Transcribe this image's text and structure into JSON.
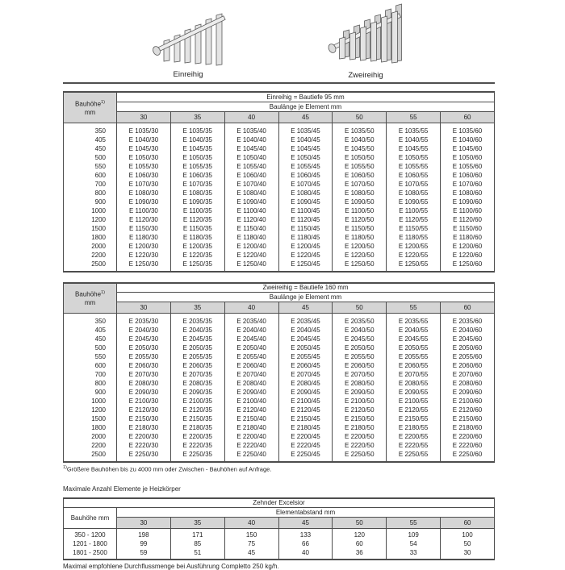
{
  "colors": {
    "header_fill": "#d5d5d5",
    "border": "#4d4d4d",
    "text": "#1f1f1f"
  },
  "diagrams": {
    "left_label": "Einreihig",
    "right_label": "Zweireihig"
  },
  "tables": [
    {
      "left_header": "Bauhöhe",
      "left_header_sup": "1)",
      "left_header_unit": "mm",
      "band_title": "Einreihig = Bautiefe 95 mm",
      "band_subtitle": "Baulänge je Element mm",
      "columns": [
        "30",
        "35",
        "40",
        "45",
        "50",
        "55",
        "60"
      ],
      "rows": [
        [
          "350",
          "E 1035/30",
          "E 1035/35",
          "E 1035/40",
          "E 1035/45",
          "E 1035/50",
          "E 1035/55",
          "E 1035/60"
        ],
        [
          "405",
          "E 1040/30",
          "E 1040/35",
          "E 1040/40",
          "E 1040/45",
          "E 1040/50",
          "E 1040/55",
          "E 1040/60"
        ],
        [
          "450",
          "E 1045/30",
          "E 1045/35",
          "E 1045/40",
          "E 1045/45",
          "E 1045/50",
          "E 1045/55",
          "E 1045/60"
        ],
        [
          "500",
          "E 1050/30",
          "E 1050/35",
          "E 1050/40",
          "E 1050/45",
          "E 1050/50",
          "E 1050/55",
          "E 1050/60"
        ],
        [
          "550",
          "E 1055/30",
          "E 1055/35",
          "E 1055/40",
          "E 1055/45",
          "E 1055/50",
          "E 1055/55",
          "E 1055/60"
        ],
        [
          "600",
          "E 1060/30",
          "E 1060/35",
          "E 1060/40",
          "E 1060/45",
          "E 1060/50",
          "E 1060/55",
          "E 1060/60"
        ],
        [
          "700",
          "E 1070/30",
          "E 1070/35",
          "E 1070/40",
          "E 1070/45",
          "E 1070/50",
          "E 1070/55",
          "E 1070/60"
        ],
        [
          "800",
          "E 1080/30",
          "E 1080/35",
          "E 1080/40",
          "E 1080/45",
          "E 1080/50",
          "E 1080/55",
          "E 1080/60"
        ],
        [
          "900",
          "E 1090/30",
          "E 1090/35",
          "E 1090/40",
          "E 1090/45",
          "E 1090/50",
          "E 1090/55",
          "E 1090/60"
        ],
        [
          "1000",
          "E 1100/30",
          "E 1100/35",
          "E 1100/40",
          "E 1100/45",
          "E 1100/50",
          "E 1100/55",
          "E 1100/60"
        ],
        [
          "1200",
          "E 1120/30",
          "E 1120/35",
          "E 1120/40",
          "E 1120/45",
          "E 1120/50",
          "E 1120/55",
          "E 1120/60"
        ],
        [
          "1500",
          "E 1150/30",
          "E 1150/35",
          "E 1150/40",
          "E 1150/45",
          "E 1150/50",
          "E 1150/55",
          "E 1150/60"
        ],
        [
          "1800",
          "E 1180/30",
          "E 1180/35",
          "E 1180/40",
          "E 1180/45",
          "E 1180/50",
          "E 1180/55",
          "E 1180/60"
        ],
        [
          "2000",
          "E 1200/30",
          "E 1200/35",
          "E 1200/40",
          "E 1200/45",
          "E 1200/50",
          "E 1200/55",
          "E 1200/60"
        ],
        [
          "2200",
          "E 1220/30",
          "E 1220/35",
          "E 1220/40",
          "E 1220/45",
          "E 1220/50",
          "E 1220/55",
          "E 1220/60"
        ],
        [
          "2500",
          "E 1250/30",
          "E 1250/35",
          "E 1250/40",
          "E 1250/45",
          "E 1250/50",
          "E 1250/55",
          "E 1250/60"
        ]
      ]
    },
    {
      "left_header": "Bauhöhe",
      "left_header_sup": "1)",
      "left_header_unit": "mm",
      "band_title": "Zweireihig = Bautiefe 160 mm",
      "band_subtitle": "Baulänge je Element mm",
      "columns": [
        "30",
        "35",
        "40",
        "45",
        "50",
        "55",
        "60"
      ],
      "rows": [
        [
          "350",
          "E 2035/30",
          "E 2035/35",
          "E 2035/40",
          "E 2035/45",
          "E 2035/50",
          "E 2035/55",
          "E 2035/60"
        ],
        [
          "405",
          "E 2040/30",
          "E 2040/35",
          "E 2040/40",
          "E 2040/45",
          "E 2040/50",
          "E 2040/55",
          "E 2040/60"
        ],
        [
          "450",
          "E 2045/30",
          "E 2045/35",
          "E 2045/40",
          "E 2045/45",
          "E 2045/50",
          "E 2045/55",
          "E 2045/60"
        ],
        [
          "500",
          "E 2050/30",
          "E 2050/35",
          "E 2050/40",
          "E 2050/45",
          "E 2050/50",
          "E 2050/55",
          "E 2050/60"
        ],
        [
          "550",
          "E 2055/30",
          "E 2055/35",
          "E 2055/40",
          "E 2055/45",
          "E 2055/50",
          "E 2055/55",
          "E 2055/60"
        ],
        [
          "600",
          "E 2060/30",
          "E 2060/35",
          "E 2060/40",
          "E 2060/45",
          "E 2060/50",
          "E 2060/55",
          "E 2060/60"
        ],
        [
          "700",
          "E 2070/30",
          "E 2070/35",
          "E 2070/40",
          "E 2070/45",
          "E 2070/50",
          "E 2070/55",
          "E 2070/60"
        ],
        [
          "800",
          "E 2080/30",
          "E 2080/35",
          "E 2080/40",
          "E 2080/45",
          "E 2080/50",
          "E 2080/55",
          "E 2080/60"
        ],
        [
          "900",
          "E 2090/30",
          "E 2090/35",
          "E 2090/40",
          "E 2090/45",
          "E 2090/50",
          "E 2090/55",
          "E 2090/60"
        ],
        [
          "1000",
          "E 2100/30",
          "E 2100/35",
          "E 2100/40",
          "E 2100/45",
          "E 2100/50",
          "E 2100/55",
          "E 2100/60"
        ],
        [
          "1200",
          "E 2120/30",
          "E 2120/35",
          "E 2120/40",
          "E 2120/45",
          "E 2120/50",
          "E 2120/55",
          "E 2120/60"
        ],
        [
          "1500",
          "E 2150/30",
          "E 2150/35",
          "E 2150/40",
          "E 2150/45",
          "E 2150/50",
          "E 2150/55",
          "E 2150/60"
        ],
        [
          "1800",
          "E 2180/30",
          "E 2180/35",
          "E 2180/40",
          "E 2180/45",
          "E 2180/50",
          "E 2180/55",
          "E 2180/60"
        ],
        [
          "2000",
          "E 2200/30",
          "E 2200/35",
          "E 2200/40",
          "E 2200/45",
          "E 2200/50",
          "E 2200/55",
          "E 2200/60"
        ],
        [
          "2200",
          "E 2220/30",
          "E 2220/35",
          "E 2220/40",
          "E 2220/45",
          "E 2220/50",
          "E 2220/55",
          "E 2220/60"
        ],
        [
          "2500",
          "E 2250/30",
          "E 2250/35",
          "E 2250/40",
          "E 2250/45",
          "E 2250/50",
          "E 2250/55",
          "E 2250/60"
        ]
      ]
    }
  ],
  "footnote": {
    "marker": "1)",
    "text": "Größere Bauhöhen bis zu 4000 mm oder Zwischen - Bauhöhen auf Anfrage."
  },
  "max_elements": {
    "heading": "Maximale Anzahl Elemente je Heizkörper",
    "brand": "Zehnder Excelsior",
    "left_header": "Bauhöhe mm",
    "band_title": "Elementabstand mm",
    "columns": [
      "30",
      "35",
      "40",
      "45",
      "50",
      "55",
      "60"
    ],
    "rows": [
      [
        "350 - 1200",
        "198",
        "171",
        "150",
        "133",
        "120",
        "109",
        "100"
      ],
      [
        "1201 - 1800",
        "99",
        "85",
        "75",
        "66",
        "60",
        "54",
        "50"
      ],
      [
        "1801 - 2500",
        "59",
        "51",
        "45",
        "40",
        "36",
        "33",
        "30"
      ]
    ],
    "footer": "Maximal empfohlene Durchflussmenge bei Ausführung Completto 250 kg/h."
  }
}
